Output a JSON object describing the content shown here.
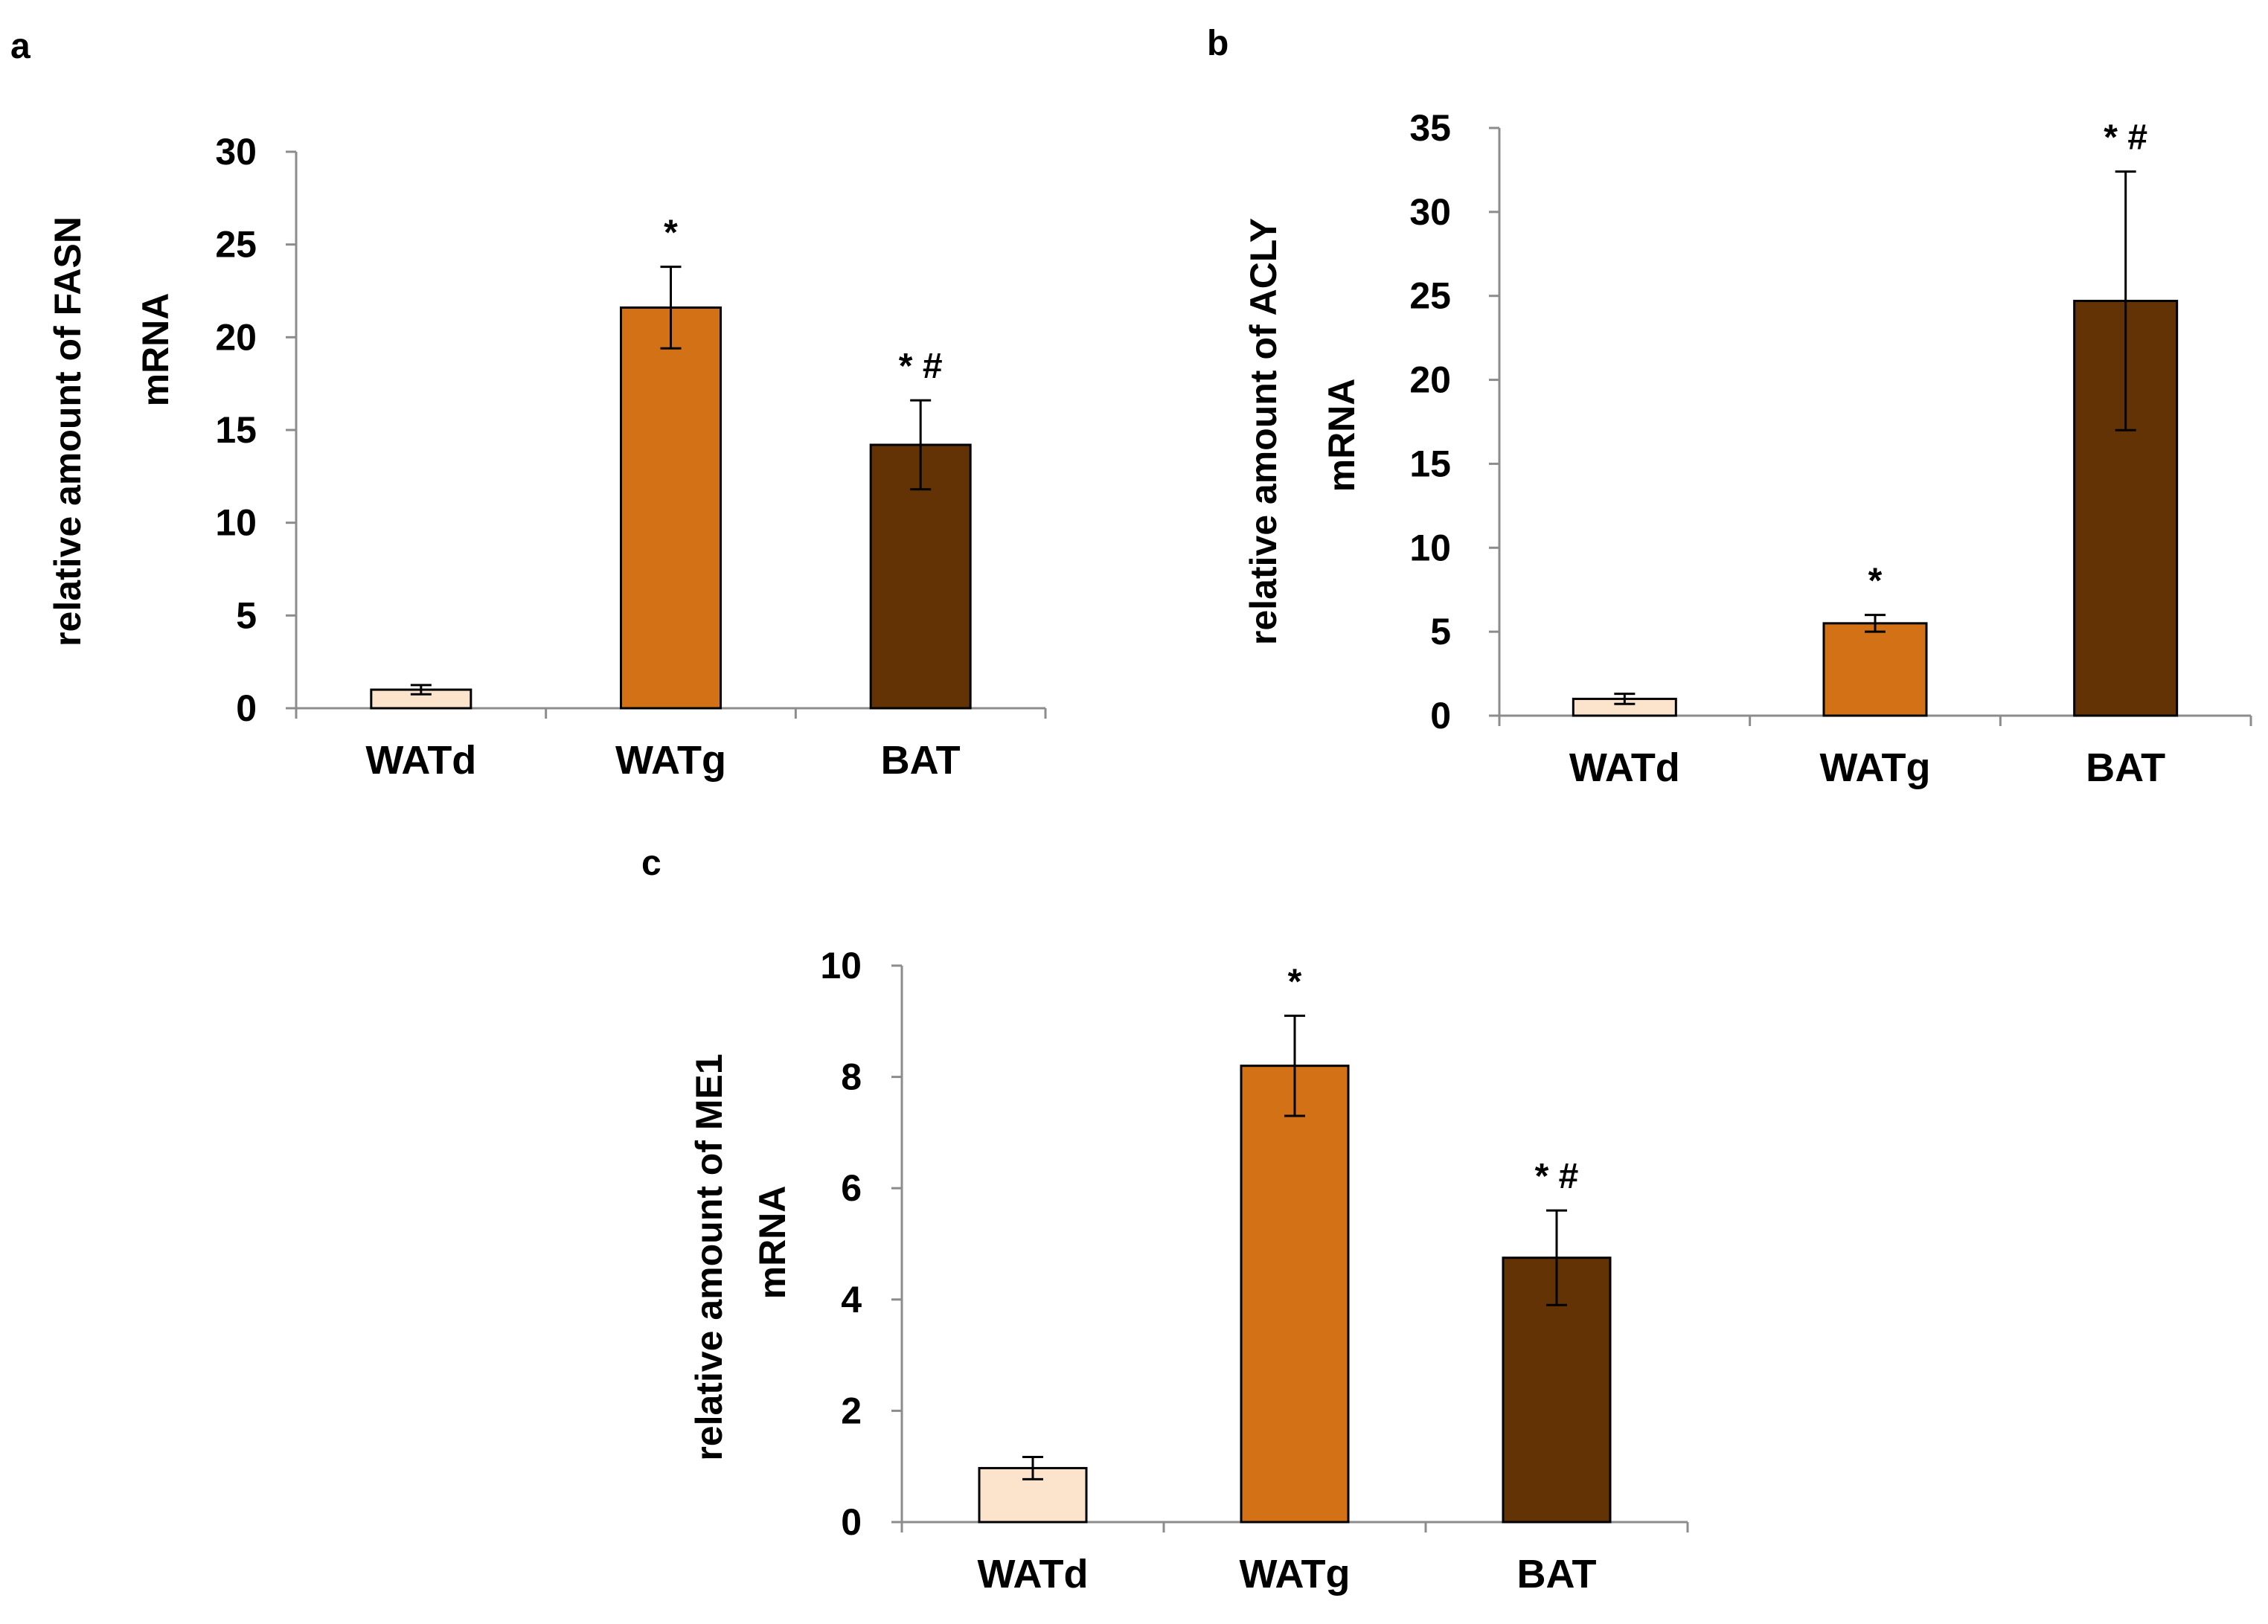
{
  "colors": {
    "WATd": "#fce4cc",
    "WATg": "#d37116",
    "BAT": "#643305"
  },
  "chart_data": [
    {
      "panel": "a",
      "type": "bar",
      "categories": [
        "WATd",
        "WATg",
        "BAT"
      ],
      "values": [
        1.0,
        21.6,
        14.2
      ],
      "errors": [
        0.25,
        2.2,
        2.4
      ],
      "annotations": [
        "",
        "*",
        "* #"
      ],
      "ylabel_line1": "relative amount of FASN",
      "ylabel_line2": "mRNA",
      "ylim": [
        0,
        30
      ],
      "yticks": [
        0,
        5,
        10,
        15,
        20,
        25,
        30
      ]
    },
    {
      "panel": "b",
      "type": "bar",
      "categories": [
        "WATd",
        "WATg",
        "BAT"
      ],
      "values": [
        1.0,
        5.5,
        24.7
      ],
      "errors": [
        0.3,
        0.5,
        7.7
      ],
      "annotations": [
        "",
        "*",
        "* #"
      ],
      "ylabel_line1": "relative amount of ACLY",
      "ylabel_line2": "mRNA",
      "ylim": [
        0,
        35
      ],
      "yticks": [
        0,
        5,
        10,
        15,
        20,
        25,
        30,
        35
      ]
    },
    {
      "panel": "c",
      "type": "bar",
      "categories": [
        "WATd",
        "WATg",
        "BAT"
      ],
      "values": [
        0.97,
        8.2,
        4.75
      ],
      "errors": [
        0.2,
        0.9,
        0.85
      ],
      "annotations": [
        "",
        "*",
        "* #"
      ],
      "ylabel_line1": "relative amount of  ME1",
      "ylabel_line2": "mRNA",
      "ylim": [
        0,
        10
      ],
      "yticks": [
        0,
        2,
        4,
        6,
        8,
        10
      ]
    }
  ]
}
